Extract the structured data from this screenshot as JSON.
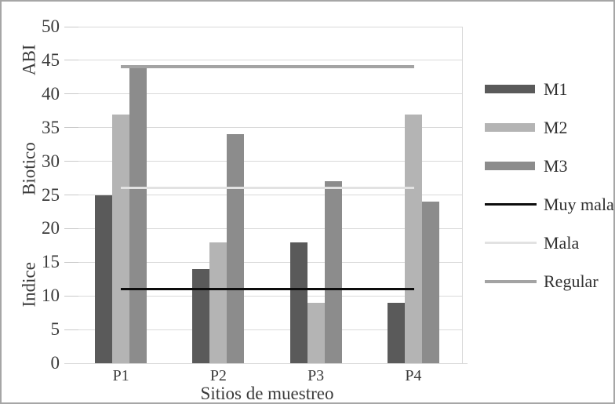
{
  "chart_data": {
    "type": "bar",
    "title": "",
    "categories": [
      "P1",
      "P2",
      "P3",
      "P4"
    ],
    "series": [
      {
        "name": "M1",
        "color": "#5a5a5a",
        "values": [
          25,
          14,
          18,
          9
        ]
      },
      {
        "name": "M2",
        "color": "#b4b4b4",
        "values": [
          37,
          18,
          9,
          37
        ]
      },
      {
        "name": "M3",
        "color": "#8c8c8c",
        "values": [
          44,
          34,
          27,
          24
        ]
      }
    ],
    "ref_lines": [
      {
        "name": "Muy mala",
        "color": "#0d0d0d",
        "value": 11,
        "thickness": 3
      },
      {
        "name": "Mala",
        "color": "#e2e2e2",
        "value": 26,
        "thickness": 3
      },
      {
        "name": "Regular",
        "color": "#a3a3a3",
        "value": 44,
        "thickness": 4
      }
    ],
    "xlabel": "Sitios de muestreo",
    "ylabel": "Indice Biotico ABI",
    "ylabel_words": [
      "Indice",
      "Biotico",
      "ABI"
    ],
    "ylim": [
      0,
      50
    ],
    "ytick_step": 5,
    "ytick_labels": [
      "0",
      "5",
      "10",
      "15",
      "20",
      "25",
      "30",
      "35",
      "40",
      "45",
      "50"
    ],
    "grid": true,
    "legend_position": "right",
    "legend_items": [
      "M1",
      "M2",
      "M3",
      "Muy mala",
      "Mala",
      "Regular"
    ]
  },
  "style_colors": {
    "gridline": "#d9d9d9",
    "axis_text": "#3a3a3a",
    "figure_border": "#a6a6a6"
  }
}
